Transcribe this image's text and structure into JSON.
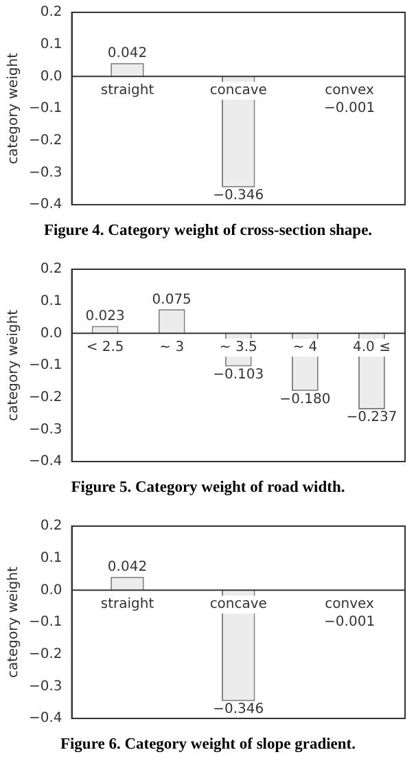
{
  "chart_data": [
    {
      "type": "bar",
      "title": "Figure 4. Category weight of cross-section shape.",
      "ylabel": "category weight",
      "categories": [
        "straight",
        "concave",
        "convex"
      ],
      "values": [
        0.042,
        -0.346,
        -0.001
      ],
      "value_labels": [
        "0.042",
        "−0.346",
        "−0.001"
      ],
      "color": "#ececec",
      "ylim": [
        -0.4,
        0.2
      ],
      "yticks": [
        {
          "value": -0.4,
          "label": "−0.4"
        },
        {
          "value": -0.3,
          "label": "−0.3"
        },
        {
          "value": -0.2,
          "label": "−0.2"
        },
        {
          "value": -0.1,
          "label": "−0.1"
        },
        {
          "value": 0,
          "label": "0.0"
        },
        {
          "value": 0.1,
          "label": "0.1"
        },
        {
          "value": 0.2,
          "label": "0.2"
        }
      ],
      "grid": false,
      "legend": false
    },
    {
      "type": "bar",
      "title": "Figure 5. Category weight of road width.",
      "ylabel": "category weight",
      "categories": [
        "< 2.5",
        "~ 3",
        "~ 3.5",
        "~ 4",
        "4.0 ≤"
      ],
      "values": [
        0.023,
        0.075,
        -0.103,
        -0.18,
        -0.237
      ],
      "value_labels": [
        "0.023",
        "0.075",
        "−0.103",
        "−0.180",
        "−0.237"
      ],
      "color": "#ececec",
      "ylim": [
        -0.4,
        0.2
      ],
      "yticks": [
        {
          "value": -0.4,
          "label": "−0.4"
        },
        {
          "value": -0.3,
          "label": "−0.3"
        },
        {
          "value": -0.2,
          "label": "−0.2"
        },
        {
          "value": -0.1,
          "label": "−0.1"
        },
        {
          "value": 0,
          "label": "0.0"
        },
        {
          "value": 0.1,
          "label": "0.1"
        },
        {
          "value": 0.2,
          "label": "0.2"
        }
      ],
      "grid": false,
      "legend": false
    },
    {
      "type": "bar",
      "title": "Figure 6. Category weight of slope gradient.",
      "ylabel": "category weight",
      "categories": [
        "straight",
        "concave",
        "convex"
      ],
      "values": [
        0.042,
        -0.346,
        -0.001
      ],
      "value_labels": [
        "0.042",
        "−0.346",
        "−0.001"
      ],
      "color": "#ececec",
      "ylim": [
        -0.4,
        0.2
      ],
      "yticks": [
        {
          "value": -0.4,
          "label": "−0.4"
        },
        {
          "value": -0.3,
          "label": "−0.3"
        },
        {
          "value": -0.2,
          "label": "−0.2"
        },
        {
          "value": -0.1,
          "label": "−0.1"
        },
        {
          "value": 0,
          "label": "0.0"
        },
        {
          "value": 0.1,
          "label": "0.1"
        },
        {
          "value": 0.2,
          "label": "0.2"
        }
      ],
      "grid": false,
      "legend": false
    }
  ]
}
